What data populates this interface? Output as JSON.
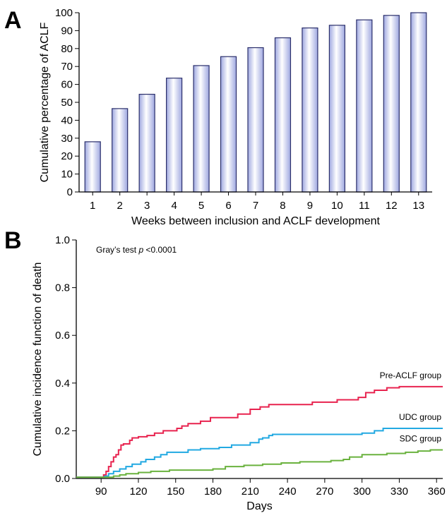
{
  "panel_letters": {
    "a": "A",
    "b": "B"
  },
  "chart_data": [
    {
      "type": "bar",
      "panel": "A",
      "title": "",
      "xlabel": "Weeks between inclusion and ACLF development",
      "ylabel": "Cumulative percentage of ACLF",
      "categories": [
        "1",
        "2",
        "3",
        "4",
        "5",
        "6",
        "7",
        "8",
        "9",
        "10",
        "11",
        "12",
        "13"
      ],
      "values": [
        28,
        46.5,
        54.5,
        63.5,
        70.5,
        75.5,
        80.5,
        86,
        91.5,
        93,
        96,
        98.5,
        100
      ],
      "ylim": [
        0,
        100
      ],
      "yticks": [
        0,
        10,
        20,
        30,
        40,
        50,
        60,
        70,
        80,
        90,
        100
      ],
      "grid": false,
      "bar_color_edge": "#2b2f6b",
      "bar_color_center": "#ffffff",
      "bar_color_side": "#9fa8e0"
    },
    {
      "type": "line",
      "panel": "B",
      "title": "",
      "xlabel": "Days",
      "ylabel": "Cumulative incidence function of death",
      "xlim": [
        70,
        365
      ],
      "ylim": [
        0,
        1.0
      ],
      "xticks": [
        90,
        120,
        150,
        180,
        210,
        240,
        270,
        300,
        330,
        360
      ],
      "yticks": [
        "0.0",
        "0.2",
        "0.4",
        "0.6",
        "0.8",
        "1.0"
      ],
      "annotation": {
        "prefix": "Gray’s test ",
        "italic": "p",
        "suffix": " <0.0001"
      },
      "grid": false,
      "series": [
        {
          "name": "Pre-ACLF group",
          "color": "#e8234f",
          "points": [
            [
              70,
              0.005
            ],
            [
              90,
              0.005
            ],
            [
              92,
              0.015
            ],
            [
              94,
              0.03
            ],
            [
              96,
              0.05
            ],
            [
              98,
              0.07
            ],
            [
              100,
              0.09
            ],
            [
              102,
              0.1
            ],
            [
              104,
              0.12
            ],
            [
              106,
              0.14
            ],
            [
              108,
              0.145
            ],
            [
              112,
              0.145
            ],
            [
              113,
              0.16
            ],
            [
              115,
              0.17
            ],
            [
              120,
              0.175
            ],
            [
              127,
              0.18
            ],
            [
              133,
              0.19
            ],
            [
              140,
              0.2
            ],
            [
              151,
              0.21
            ],
            [
              155,
              0.22
            ],
            [
              160,
              0.23
            ],
            [
              170,
              0.24
            ],
            [
              178,
              0.255
            ],
            [
              200,
              0.27
            ],
            [
              210,
              0.29
            ],
            [
              218,
              0.3
            ],
            [
              225,
              0.31
            ],
            [
              260,
              0.32
            ],
            [
              280,
              0.33
            ],
            [
              297,
              0.34
            ],
            [
              303,
              0.36
            ],
            [
              310,
              0.37
            ],
            [
              320,
              0.38
            ],
            [
              330,
              0.385
            ],
            [
              365,
              0.385
            ]
          ]
        },
        {
          "name": "UDC group",
          "color": "#22a9e2",
          "points": [
            [
              70,
              0.005
            ],
            [
              90,
              0.005
            ],
            [
              93,
              0.01
            ],
            [
              96,
              0.02
            ],
            [
              100,
              0.03
            ],
            [
              105,
              0.04
            ],
            [
              110,
              0.05
            ],
            [
              115,
              0.06
            ],
            [
              122,
              0.07
            ],
            [
              126,
              0.08
            ],
            [
              133,
              0.09
            ],
            [
              138,
              0.1
            ],
            [
              143,
              0.11
            ],
            [
              160,
              0.12
            ],
            [
              170,
              0.125
            ],
            [
              185,
              0.13
            ],
            [
              195,
              0.14
            ],
            [
              210,
              0.15
            ],
            [
              217,
              0.165
            ],
            [
              220,
              0.17
            ],
            [
              225,
              0.18
            ],
            [
              228,
              0.185
            ],
            [
              300,
              0.19
            ],
            [
              310,
              0.2
            ],
            [
              317,
              0.21
            ],
            [
              365,
              0.21
            ]
          ]
        },
        {
          "name": "SDC group",
          "color": "#6ab23e",
          "points": [
            [
              70,
              0.005
            ],
            [
              95,
              0.005
            ],
            [
              100,
              0.01
            ],
            [
              105,
              0.015
            ],
            [
              110,
              0.02
            ],
            [
              120,
              0.025
            ],
            [
              130,
              0.03
            ],
            [
              145,
              0.035
            ],
            [
              180,
              0.04
            ],
            [
              190,
              0.05
            ],
            [
              205,
              0.055
            ],
            [
              220,
              0.06
            ],
            [
              235,
              0.065
            ],
            [
              250,
              0.07
            ],
            [
              275,
              0.075
            ],
            [
              285,
              0.08
            ],
            [
              290,
              0.09
            ],
            [
              300,
              0.1
            ],
            [
              320,
              0.105
            ],
            [
              335,
              0.11
            ],
            [
              345,
              0.115
            ],
            [
              355,
              0.12
            ],
            [
              365,
              0.12
            ]
          ]
        }
      ]
    }
  ]
}
